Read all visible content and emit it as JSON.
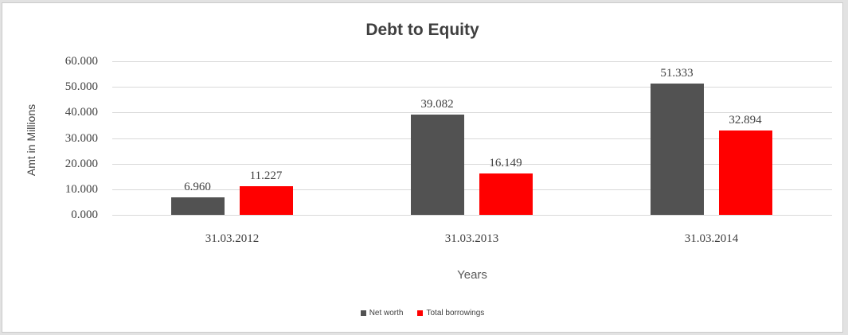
{
  "chart_data": {
    "type": "bar",
    "title": "Debt to Equity",
    "xlabel": "Years",
    "ylabel": "Amt in Millions",
    "categories": [
      "31.03.2012",
      "31.03.2013",
      "31.03.2014"
    ],
    "series": [
      {
        "name": "Net worth",
        "color": "#525252",
        "values": [
          6.96,
          39.082,
          51.333
        ],
        "labels": [
          "6.960",
          "39.082",
          "51.333"
        ]
      },
      {
        "name": "Total borrowings",
        "color": "#ff0000",
        "values": [
          11.227,
          16.149,
          32.894
        ],
        "labels": [
          "11.227",
          "16.149",
          "32.894"
        ]
      }
    ],
    "ylim": [
      0,
      60
    ],
    "ytick_labels": [
      "0.000",
      "10.000",
      "20.000",
      "30.000",
      "40.000",
      "50.000",
      "60.000"
    ],
    "grid": "horizontal",
    "legend_position": "bottom",
    "gridline_color": "#d9d9d9",
    "text_color": "#404040"
  }
}
